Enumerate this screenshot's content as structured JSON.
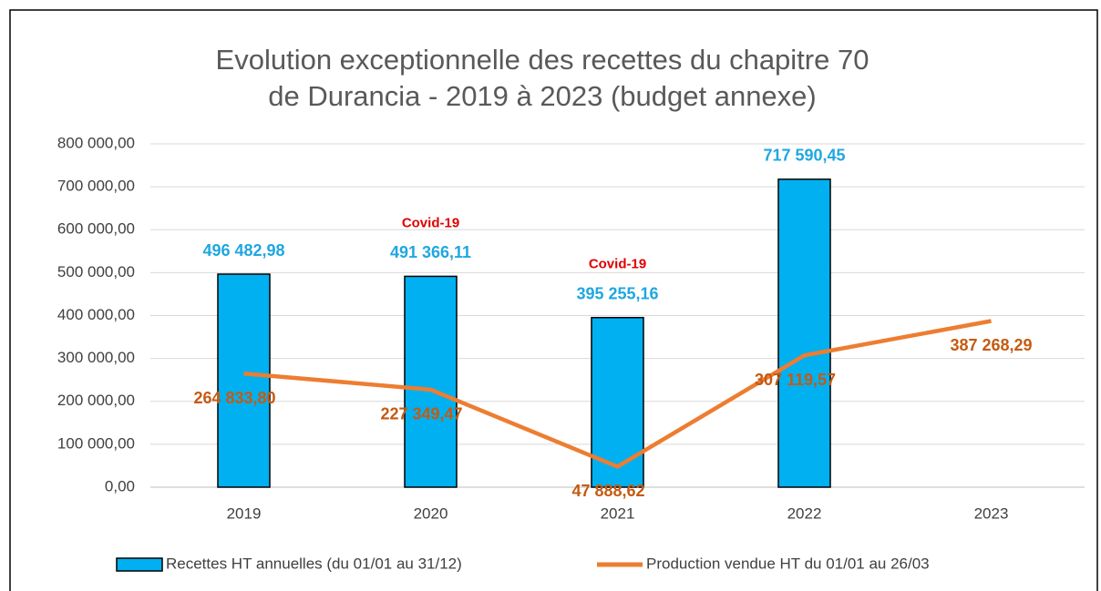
{
  "chart_data": {
    "type": "bar",
    "title": [
      "Evolution exceptionnelle des recettes du chapitre 70",
      "de Durancia - 2019 à 2023 (budget annexe)"
    ],
    "categories": [
      "2019",
      "2020",
      "2021",
      "2022",
      "2023"
    ],
    "series": [
      {
        "name": "Recettes HT annuelles (du 01/01 au 31/12)",
        "type": "bar",
        "color": "#00b0f0",
        "label_color": "#1fa7e0",
        "values": [
          496482.98,
          491366.11,
          395255.16,
          717590.45,
          null
        ],
        "value_labels": [
          "496 482,98",
          "491 366,11",
          "395 255,16",
          "717 590,45",
          null
        ]
      },
      {
        "name": "Production vendue HT du 01/01 au 26/03",
        "type": "line",
        "color": "#ed7d31",
        "label_color": "#c55a11",
        "values": [
          264833.8,
          227349.47,
          47888.62,
          307119.57,
          387268.29
        ],
        "value_labels": [
          "264 833,80",
          "227 349,47",
          "47 888,62",
          "307 119,57",
          "387 268,29"
        ]
      }
    ],
    "annotations": [
      {
        "text": "Covid-19",
        "x": "2020"
      },
      {
        "text": "Covid-19",
        "x": "2021"
      }
    ],
    "ylim": [
      0,
      800000
    ],
    "yticks": [
      {
        "value": 0,
        "label": "0,00"
      },
      {
        "value": 100000,
        "label": "100 000,00"
      },
      {
        "value": 200000,
        "label": "200 000,00"
      },
      {
        "value": 300000,
        "label": "300 000,00"
      },
      {
        "value": 400000,
        "label": "400 000,00"
      },
      {
        "value": 500000,
        "label": "500 000,00"
      },
      {
        "value": 600000,
        "label": "600 000,00"
      },
      {
        "value": 700000,
        "label": "700 000,00"
      },
      {
        "value": 800000,
        "label": "800 000,00"
      }
    ],
    "grid": true,
    "legend": "bottom"
  }
}
